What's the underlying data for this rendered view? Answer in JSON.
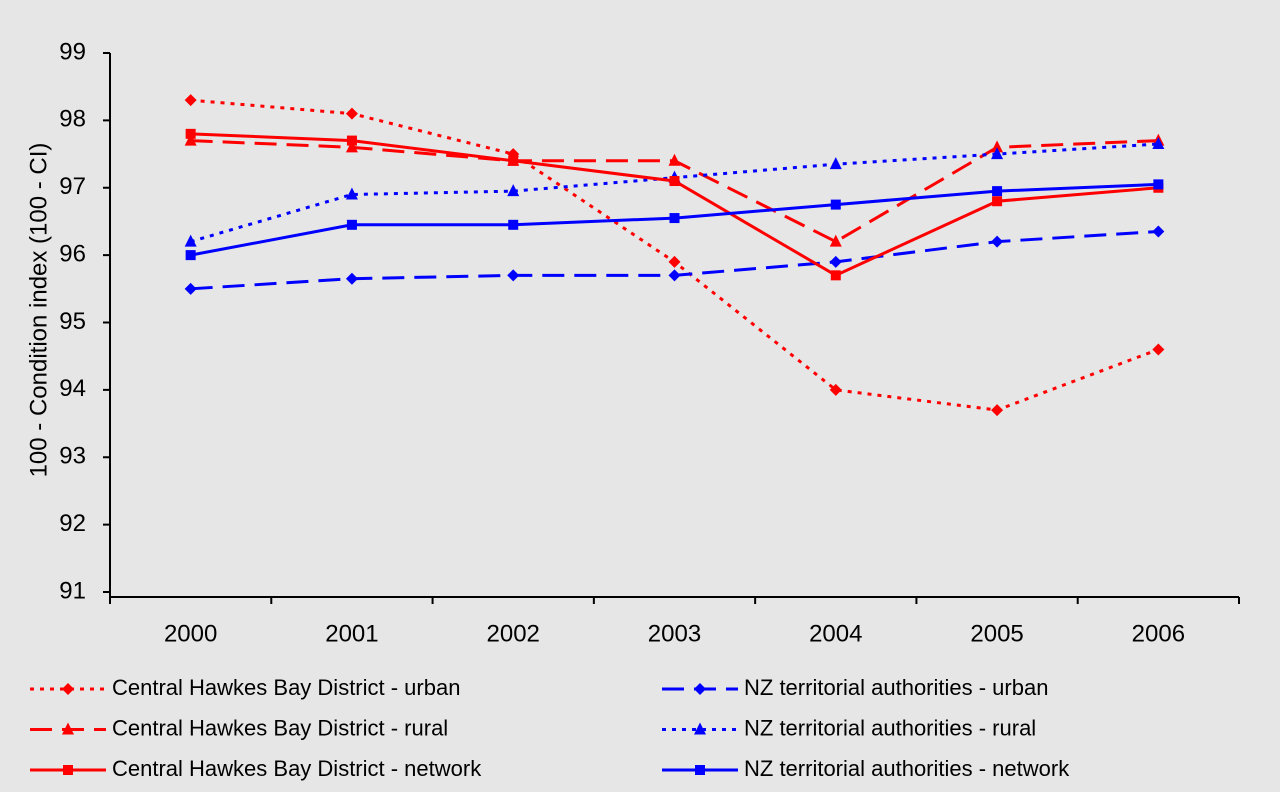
{
  "chart_data": {
    "type": "line",
    "ylabel": "100 - Condition index (100 - CI)",
    "categories": [
      "2000",
      "2001",
      "2002",
      "2003",
      "2004",
      "2005",
      "2006"
    ],
    "ylim": [
      91,
      99
    ],
    "yticks": [
      91,
      92,
      93,
      94,
      95,
      96,
      97,
      98,
      99
    ],
    "series": [
      {
        "name": "Central Hawkes Bay District - urban",
        "color": "#ff0000",
        "dash": "dotted",
        "marker": "diamond",
        "values": [
          98.3,
          98.1,
          97.5,
          95.9,
          94.0,
          93.7,
          94.6
        ]
      },
      {
        "name": "NZ territorial authorities - urban",
        "color": "#0000ff",
        "dash": "dashed",
        "marker": "diamond",
        "values": [
          95.5,
          95.65,
          95.7,
          95.7,
          95.9,
          96.2,
          96.35
        ]
      },
      {
        "name": "Central Hawkes Bay District - rural",
        "color": "#ff0000",
        "dash": "dashed",
        "marker": "triangle",
        "values": [
          97.7,
          97.6,
          97.4,
          97.4,
          96.2,
          97.6,
          97.7
        ]
      },
      {
        "name": "NZ territorial authorities - rural",
        "color": "#0000ff",
        "dash": "dotted",
        "marker": "triangle",
        "values": [
          96.2,
          96.9,
          96.95,
          97.15,
          97.35,
          97.5,
          97.65
        ]
      },
      {
        "name": "Central Hawkes Bay District - network",
        "color": "#ff0000",
        "dash": "solid",
        "marker": "square",
        "values": [
          97.8,
          97.7,
          97.4,
          97.1,
          95.7,
          96.8,
          97.0
        ]
      },
      {
        "name": "NZ territorial authorities - network",
        "color": "#0000ff",
        "dash": "solid",
        "marker": "square",
        "values": [
          96.0,
          96.45,
          96.45,
          96.55,
          96.75,
          96.95,
          97.05
        ]
      }
    ]
  }
}
